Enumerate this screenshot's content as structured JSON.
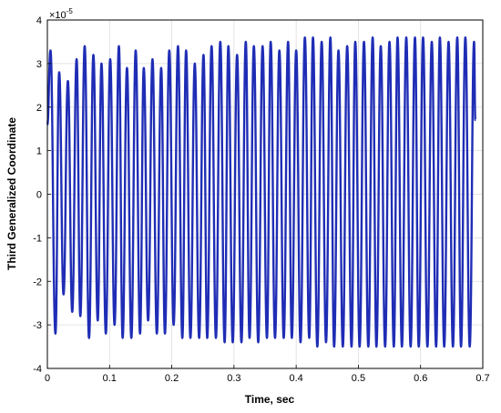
{
  "chart_data": {
    "type": "line",
    "title": "",
    "xlabel": "Time, sec",
    "ylabel": "Third Generalized Coordinate",
    "y_exponent_label": "×10",
    "y_exponent_power": "-5",
    "xlim": [
      0,
      0.7
    ],
    "ylim": [
      -4,
      4
    ],
    "grid": true,
    "line_color": "#1f2db5",
    "x_ticks": [
      "0",
      "0.1",
      "0.2",
      "0.3",
      "0.4",
      "0.5",
      "0.6",
      "0.7"
    ],
    "x_tick_values": [
      0,
      0.1,
      0.2,
      0.3,
      0.4,
      0.5,
      0.6,
      0.7
    ],
    "y_ticks": [
      "4",
      "3",
      "2",
      "1",
      "0",
      "-1",
      "-2",
      "-3",
      "-4"
    ],
    "y_tick_values": [
      4,
      3,
      2,
      1,
      0,
      -1,
      -2,
      -3,
      -4
    ],
    "series": [
      {
        "name": "",
        "x": [
          0,
          0.005,
          0.013,
          0.019,
          0.026,
          0.033,
          0.04,
          0.047,
          0.053,
          0.06,
          0.067,
          0.074,
          0.081,
          0.087,
          0.094,
          0.101,
          0.108,
          0.115,
          0.121,
          0.128,
          0.135,
          0.142,
          0.149,
          0.155,
          0.162,
          0.169,
          0.176,
          0.183,
          0.189,
          0.196,
          0.203,
          0.21,
          0.217,
          0.223,
          0.23,
          0.237,
          0.244,
          0.251,
          0.257,
          0.264,
          0.271,
          0.278,
          0.285,
          0.291,
          0.298,
          0.305,
          0.312,
          0.319,
          0.325,
          0.332,
          0.339,
          0.346,
          0.353,
          0.359,
          0.366,
          0.373,
          0.38,
          0.387,
          0.393,
          0.4,
          0.407,
          0.414,
          0.421,
          0.427,
          0.434,
          0.441,
          0.448,
          0.455,
          0.461,
          0.468,
          0.475,
          0.482,
          0.489,
          0.495,
          0.502,
          0.509,
          0.516,
          0.523,
          0.529,
          0.536,
          0.543,
          0.55,
          0.557,
          0.563,
          0.57,
          0.577,
          0.584,
          0.591,
          0.597,
          0.604,
          0.611,
          0.618,
          0.625,
          0.631,
          0.638,
          0.645,
          0.652,
          0.659,
          0.665,
          0.672,
          0.679,
          0.686,
          0.688
        ],
        "y": [
          1.6,
          3.3,
          -3.2,
          2.8,
          -2.3,
          2.6,
          -2.7,
          3.1,
          -2.8,
          3.4,
          -3.3,
          3.2,
          -2.9,
          3.0,
          -3.2,
          3.1,
          -3.0,
          3.4,
          -3.3,
          2.9,
          -3.3,
          3.3,
          -3.2,
          2.9,
          -2.9,
          3.1,
          -3.2,
          2.9,
          -3.2,
          3.3,
          -3.0,
          3.4,
          -3.3,
          3.3,
          -3.3,
          3.0,
          -3.3,
          3.2,
          -3.3,
          3.4,
          -3.3,
          3.5,
          -3.4,
          3.4,
          -3.4,
          3.2,
          -3.4,
          3.5,
          -3.3,
          3.4,
          -3.4,
          3.4,
          -3.3,
          3.5,
          -3.3,
          3.3,
          -3.3,
          3.5,
          -3.3,
          3.3,
          -3.4,
          3.6,
          -3.3,
          3.6,
          -3.5,
          3.5,
          -3.4,
          3.6,
          -3.5,
          3.3,
          -3.5,
          3.4,
          -3.5,
          3.5,
          -3.5,
          3.5,
          -3.5,
          3.6,
          -3.5,
          3.4,
          -3.5,
          3.5,
          -3.5,
          3.6,
          -3.5,
          3.6,
          -3.5,
          3.6,
          -3.5,
          3.6,
          -3.5,
          3.5,
          -3.5,
          3.6,
          -3.5,
          3.5,
          -3.5,
          3.6,
          -3.5,
          3.6,
          -3.5,
          3.5,
          1.7
        ]
      }
    ]
  }
}
